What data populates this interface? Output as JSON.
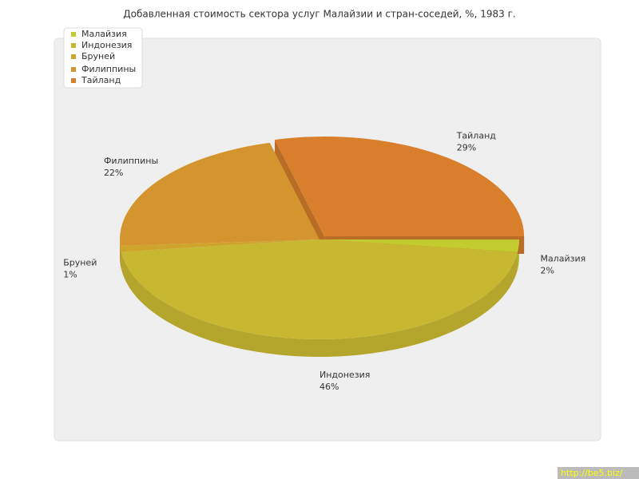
{
  "chart_data": {
    "type": "pie",
    "title": "Добавленная стоимость сектора услуг Малайзии и стран-соседей, %, 1983 г.",
    "categories": [
      "Малайзия",
      "Индонезия",
      "Бруней",
      "Филиппины",
      "Тайланд"
    ],
    "values": [
      2,
      46,
      1,
      22,
      29
    ],
    "value_labels": [
      "2%",
      "46%",
      "1%",
      "22%",
      "29%"
    ],
    "colors": [
      "#c3cc2f",
      "#c8b831",
      "#cfa42c",
      "#d5952e",
      "#d97f2c"
    ],
    "legend": "top-left"
  },
  "watermark": "http://be5.biz/"
}
